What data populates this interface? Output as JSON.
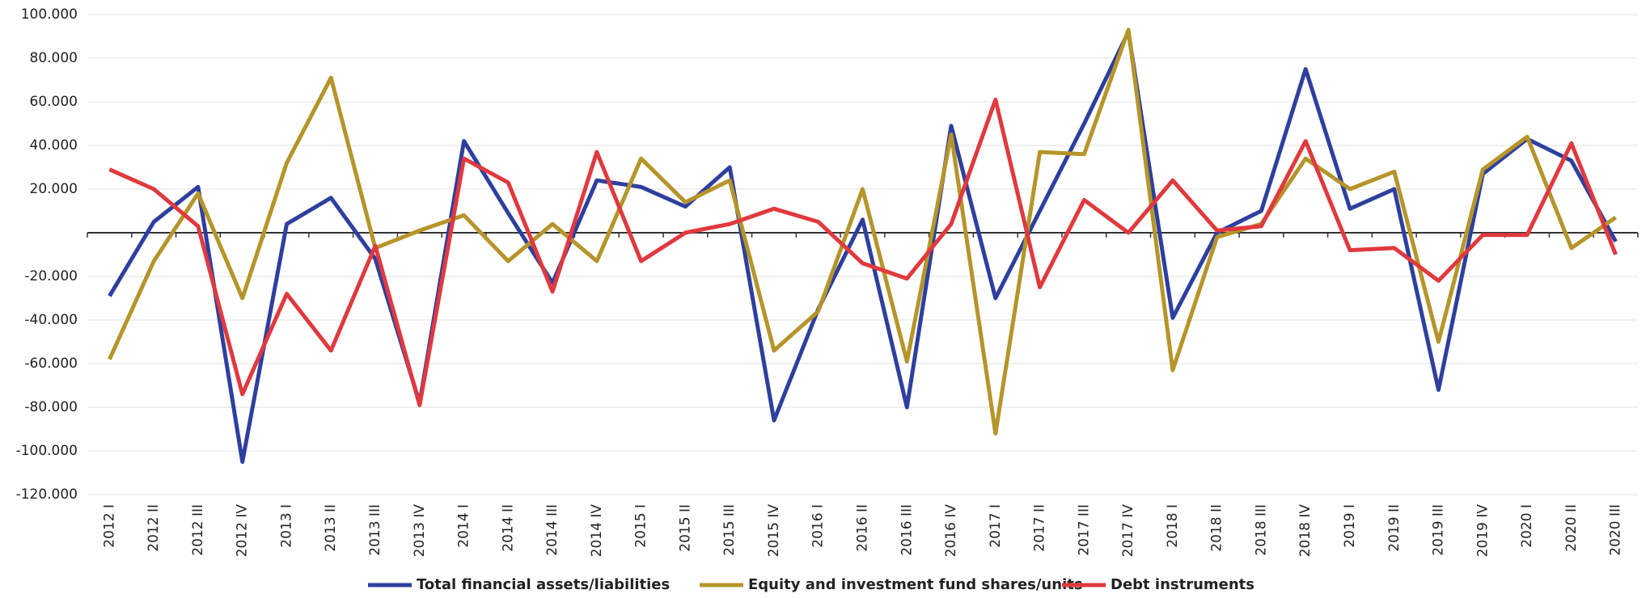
{
  "chart_data": {
    "type": "line",
    "categories": [
      "2012 I",
      "2012 II",
      "2012 III",
      "2012 IV",
      "2013 I",
      "2013 II",
      "2013 III",
      "2013 IV",
      "2014 I",
      "2014 II",
      "2014 III",
      "2014 IV",
      "2015 I",
      "2015 II",
      "2015 III",
      "2015 IV",
      "2016 I",
      "2016 II",
      "2016 III",
      "2016 IV",
      "2017 I",
      "2017 II",
      "2017 III",
      "2017 IV",
      "2018 I",
      "2018 II",
      "2018 III",
      "2018 IV",
      "2019 I",
      "2019 II",
      "2019 III",
      "2019 IV",
      "2020 I",
      "2020 II",
      "2020 III"
    ],
    "series": [
      {
        "name": "Total financial assets/liabilities",
        "color": "#2e3f9e",
        "values": [
          -29000,
          5000,
          21000,
          -105000,
          4000,
          16000,
          -12000,
          -78000,
          42000,
          9000,
          -23000,
          24000,
          21000,
          12000,
          30000,
          -86000,
          -35000,
          6000,
          -80000,
          49000,
          -30000,
          10000,
          50000,
          92000,
          -39000,
          0,
          10000,
          75000,
          11000,
          20000,
          -72000,
          27000,
          43000,
          33000,
          -4000
        ]
      },
      {
        "name": "Equity and investment fund shares/units",
        "color": "#b5952a",
        "values": [
          -58000,
          -13000,
          18000,
          -30000,
          32000,
          71000,
          -7000,
          1000,
          8000,
          -13000,
          4000,
          -13000,
          34000,
          14000,
          24000,
          -54000,
          -36000,
          20000,
          -59000,
          45000,
          -92000,
          37000,
          36000,
          93000,
          -63000,
          -2000,
          4000,
          34000,
          20000,
          28000,
          -50000,
          29000,
          44000,
          -7000,
          7000
        ]
      },
      {
        "name": "Debt instruments",
        "color": "#e0393e",
        "values": [
          29000,
          20000,
          3000,
          -74000,
          -28000,
          -54000,
          -6000,
          -79000,
          34000,
          23000,
          -27000,
          37000,
          -13000,
          0,
          4000,
          11000,
          5000,
          -14000,
          -21000,
          4000,
          61000,
          -25000,
          15000,
          0,
          24000,
          1000,
          3000,
          42000,
          -8000,
          -7000,
          -22000,
          -1000,
          -1000,
          41000,
          -10000
        ]
      }
    ],
    "ylim": [
      -120000,
      100000
    ],
    "yticks": [
      {
        "value": -120000,
        "label": "-120.000"
      },
      {
        "value": -100000,
        "label": "-100.000"
      },
      {
        "value": -80000,
        "label": "-80.000"
      },
      {
        "value": -60000,
        "label": "-60.000"
      },
      {
        "value": -40000,
        "label": "-40.000"
      },
      {
        "value": -20000,
        "label": "-20.000"
      },
      {
        "value": 20000,
        "label": "20.000"
      },
      {
        "value": 40000,
        "label": "40.000"
      },
      {
        "value": 60000,
        "label": "60.000"
      },
      {
        "value": 80000,
        "label": "80.000"
      },
      {
        "value": 100000,
        "label": "100.000"
      }
    ],
    "grid": true,
    "legend": "bottom"
  }
}
